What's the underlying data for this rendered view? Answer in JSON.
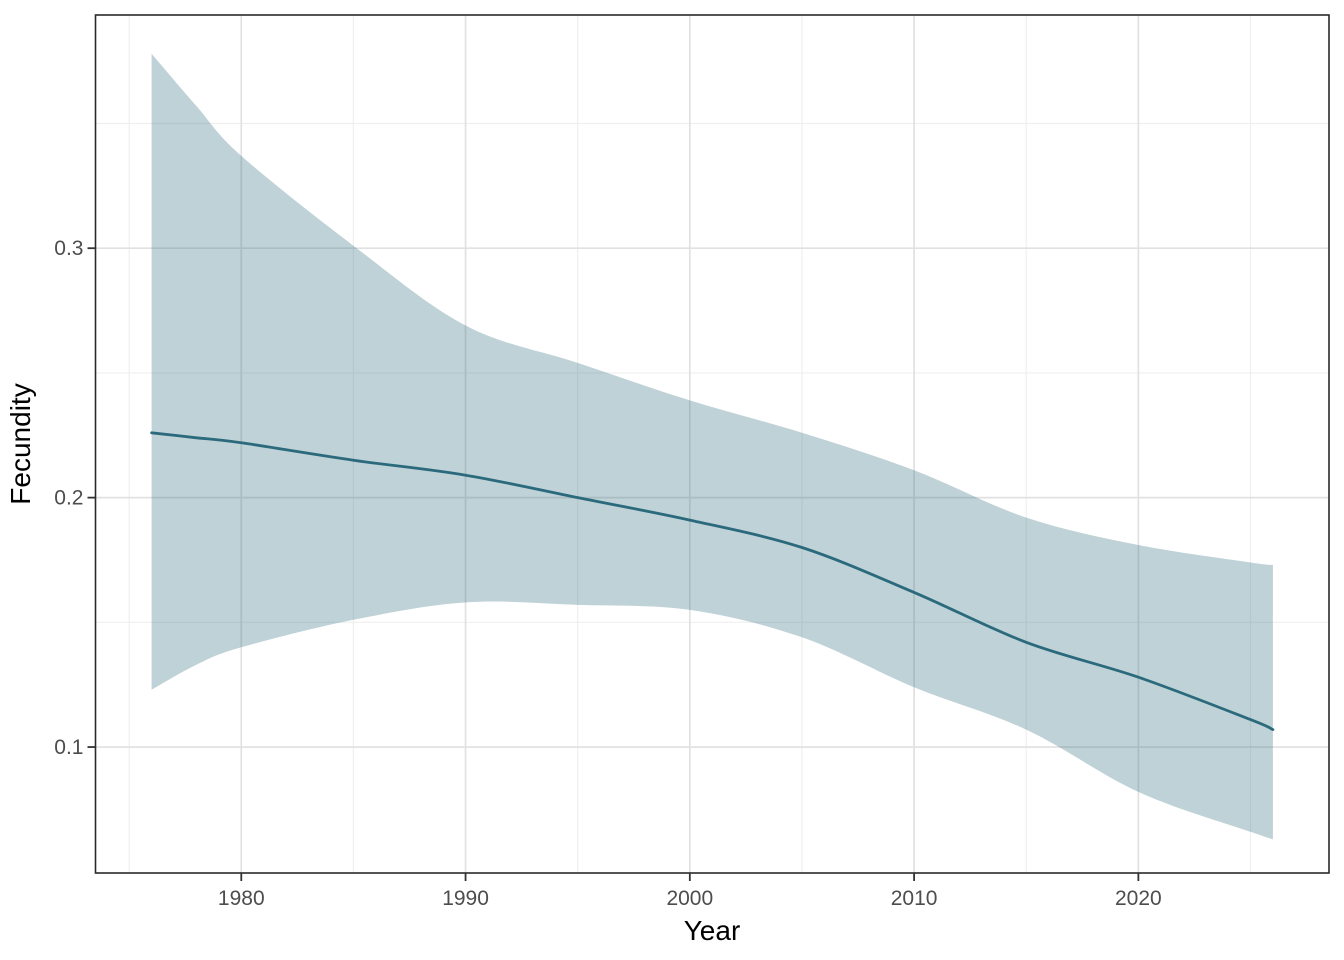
{
  "chart_data": {
    "type": "line",
    "title": "",
    "xlabel": "Year",
    "ylabel": "Fecundity",
    "legend": "none",
    "grid": "major+minor",
    "xlim": [
      1973.5,
      2028.5
    ],
    "ylim": [
      0.0495,
      0.3935
    ],
    "x_ticks": [
      1980,
      1990,
      2000,
      2010,
      2020
    ],
    "x_tick_labels": [
      "1980",
      "1990",
      "2000",
      "2010",
      "2020"
    ],
    "y_ticks": [
      0.1,
      0.2,
      0.3
    ],
    "y_tick_labels": [
      "0.1",
      "0.2",
      "0.3"
    ],
    "x_minor_ticks": [
      1975,
      1985,
      1995,
      2005,
      2015,
      2025
    ],
    "y_minor_ticks": [
      0.15,
      0.25,
      0.35
    ],
    "x": [
      1976,
      1978,
      1980,
      1985,
      1990,
      1995,
      2000,
      2005,
      2010,
      2015,
      2020,
      2025,
      2026
    ],
    "series": [
      {
        "name": "smoothed-mean-fecundity",
        "kind": "line",
        "values": [
          0.226,
          0.224,
          0.222,
          0.215,
          0.209,
          0.2,
          0.191,
          0.18,
          0.162,
          0.142,
          0.128,
          0.111,
          0.107
        ]
      },
      {
        "name": "confidence-ribbon-lower",
        "kind": "area-lower",
        "values": [
          0.123,
          0.133,
          0.14,
          0.151,
          0.158,
          0.157,
          0.155,
          0.144,
          0.124,
          0.107,
          0.082,
          0.066,
          0.063
        ]
      },
      {
        "name": "confidence-ribbon-upper",
        "kind": "area-upper",
        "values": [
          0.378,
          0.357,
          0.337,
          0.301,
          0.269,
          0.254,
          0.239,
          0.226,
          0.211,
          0.192,
          0.181,
          0.174,
          0.173
        ]
      }
    ],
    "colors": {
      "line": "#2b6a7c",
      "ribbon_fill": "#2b6a7c",
      "ribbon_opacity": 0.3,
      "grid_major": "#e1e1e1",
      "grid_minor": "#efefef",
      "panel_border": "#2a2a2a",
      "tick_mark": "#333333",
      "tick_label": "#4d4d4d",
      "axis_title": "#000000",
      "background": "#ffffff"
    }
  }
}
